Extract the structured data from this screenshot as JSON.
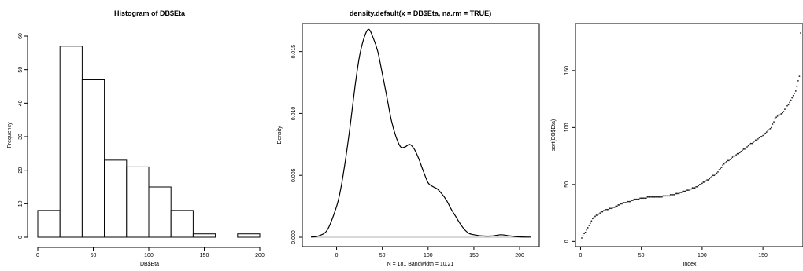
{
  "chart_data": [
    {
      "type": "bar",
      "title": "Histogram of DB$Eta",
      "xlabel": "DB$Eta",
      "ylabel": "Frequency",
      "bin_edges": [
        0,
        20,
        40,
        60,
        80,
        100,
        120,
        140,
        160,
        180,
        200
      ],
      "values": [
        8,
        57,
        47,
        23,
        21,
        15,
        8,
        1,
        0,
        1
      ],
      "xlim": [
        0,
        200
      ],
      "ylim": [
        0,
        60
      ],
      "xticks": [
        0,
        50,
        100,
        150,
        200
      ],
      "yticks": [
        0,
        10,
        20,
        30,
        40,
        50,
        60
      ],
      "grid": false
    },
    {
      "type": "line",
      "title": "density.default(x = DB$Eta, na.rm = TRUE)",
      "xlabel": "N = 181   Bandwidth = 10.21",
      "ylabel": "Density",
      "x": [
        -28,
        -20,
        -10,
        0,
        5,
        10,
        15,
        20,
        25,
        30,
        35,
        40,
        45,
        50,
        55,
        60,
        65,
        70,
        75,
        80,
        85,
        90,
        95,
        100,
        105,
        110,
        115,
        120,
        125,
        130,
        135,
        140,
        145,
        150,
        160,
        170,
        180,
        190,
        200,
        212
      ],
      "y": [
        2e-05,
        0.0001,
        0.0006,
        0.0025,
        0.0041,
        0.0064,
        0.0091,
        0.0121,
        0.0146,
        0.0161,
        0.0168,
        0.0161,
        0.015,
        0.0132,
        0.0113,
        0.0094,
        0.0081,
        0.0073,
        0.0073,
        0.0075,
        0.0071,
        0.0063,
        0.0053,
        0.0044,
        0.0041,
        0.0039,
        0.0035,
        0.003,
        0.0023,
        0.0017,
        0.0011,
        0.0006,
        0.0003,
        0.0002,
        0.0001,
        0.0001,
        0.0002,
        0.0001,
        3e-05,
        1e-05
      ],
      "xlim": [
        -28,
        212
      ],
      "ylim": [
        0,
        0.0165
      ],
      "xticks": [
        0,
        50,
        100,
        150,
        200
      ],
      "yticks": [
        0.0,
        0.005,
        0.01,
        0.015
      ],
      "ytick_labels": [
        "0.000",
        "0.005",
        "0.010",
        "0.015"
      ],
      "baseline": 0,
      "grid": false
    },
    {
      "type": "scatter",
      "title": "",
      "xlabel": "Index",
      "ylabel": "sort(DB$Eta)",
      "x_range": [
        1,
        181
      ],
      "anchor_index": [
        1,
        5,
        10,
        16,
        22,
        28,
        33,
        40,
        45,
        52,
        58,
        63,
        72,
        80,
        88,
        96,
        100,
        106,
        112,
        118,
        125,
        131,
        137,
        143,
        150,
        157,
        160,
        166,
        171,
        177,
        180,
        181
      ],
      "anchor_value": [
        3,
        10,
        20,
        25,
        28,
        30,
        33,
        35,
        37,
        38,
        39,
        39,
        40,
        42,
        45,
        48,
        51,
        55,
        60,
        68,
        74,
        78,
        83,
        88,
        93,
        100,
        108,
        113,
        120,
        132,
        145,
        183
      ],
      "xlim": [
        1,
        181
      ],
      "ylim": [
        3,
        183
      ],
      "xticks": [
        0,
        50,
        100,
        150
      ],
      "yticks": [
        0,
        50,
        100,
        150
      ],
      "grid": false
    }
  ]
}
